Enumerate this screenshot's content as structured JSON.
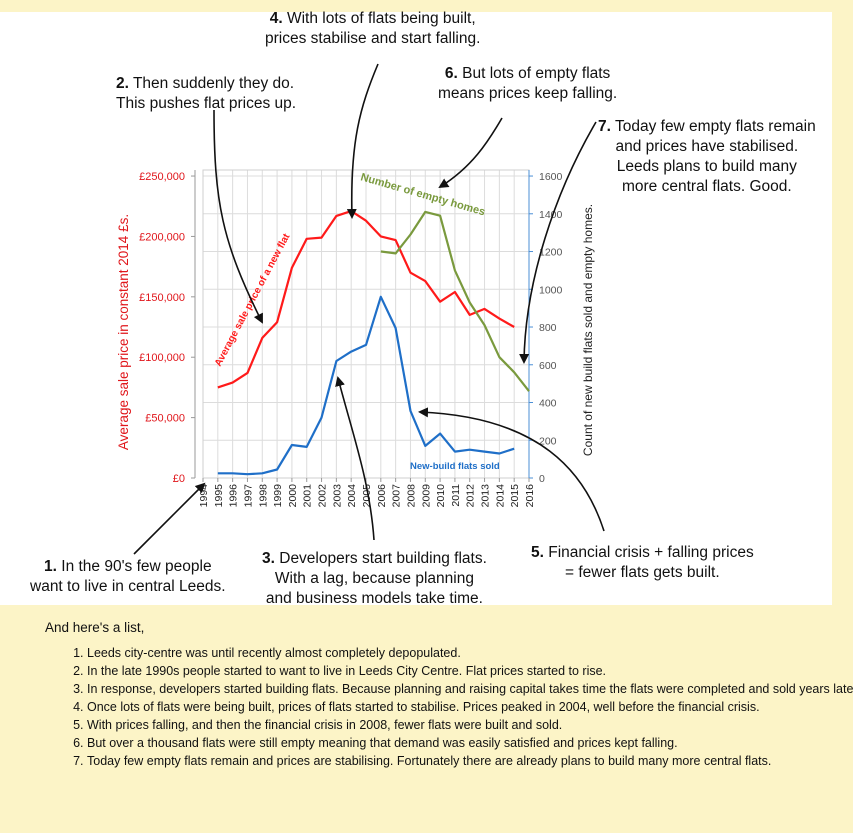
{
  "intro": "And here's a list,",
  "list_items": [
    "Leeds city-centre was until recently almost completely depopulated.",
    "In the late 1990s people started to want to live in Leeds City Centre. Flat prices started to rise.",
    "In response, developers started building flats. Because planning and raising capital takes time the flats were completed and sold years later.",
    "Once lots of flats were being built, prices of flats started to stabilise. Prices peaked in 2004, well before the financial crisis.",
    "With prices falling, and then the financial crisis in 2008, fewer flats were built and sold.",
    "But over a thousand flats were still empty meaning that demand was easily satisfied and prices kept falling.",
    "Today few empty flats remain and prices are stabilising. Fortunately there are already plans to build many more central flats."
  ],
  "annotations": {
    "a1": {
      "num": "1.",
      "line1": " In the 90's few people",
      "line2": "want to live in central Leeds."
    },
    "a2": {
      "num": "2.",
      "line1": " Then suddenly they do.",
      "line2": "This pushes flat prices up."
    },
    "a3": {
      "num": "3.",
      "line1": " Developers start building flats.",
      "line2": "With a lag, because planning",
      "line3": "and business models take time."
    },
    "a4": {
      "num": "4.",
      "line1": " With lots of flats being built,",
      "line2": "prices stabilise and start falling."
    },
    "a5": {
      "num": "5.",
      "line1": " Financial crisis + falling prices",
      "line2": "= fewer flats gets built."
    },
    "a6": {
      "num": "6.",
      "line1": " But lots of empty flats",
      "line2": "means prices keep falling."
    },
    "a7": {
      "num": "7.",
      "line1": " Today few empty flats remain",
      "line2": "and prices have stabilised.",
      "line3": "Leeds plans to build many",
      "line4": "more central flats. Good."
    }
  },
  "chart_data": {
    "type": "line",
    "x": [
      1994,
      1995,
      1996,
      1997,
      1998,
      1999,
      2000,
      2001,
      2002,
      2003,
      2004,
      2005,
      2006,
      2007,
      2008,
      2009,
      2010,
      2011,
      2012,
      2013,
      2014,
      2015,
      2016
    ],
    "xlim": [
      1994,
      2016
    ],
    "y_left_label": "Average sale price in constant 2014 £s.",
    "y_left_ticks": [
      0,
      50000,
      100000,
      150000,
      200000,
      250000
    ],
    "y_left_tick_labels": [
      "£0",
      "£50,000",
      "£100,000",
      "£150,000",
      "£200,000",
      "£250,000"
    ],
    "y_left_lim": [
      0,
      255000
    ],
    "y_right_label": "Count of new build flats sold and empty homes.",
    "y_right_ticks": [
      0,
      200,
      400,
      600,
      800,
      1000,
      1200,
      1400,
      1600
    ],
    "y_right_lim": [
      0,
      1632
    ],
    "grid": true,
    "series": [
      {
        "name": "Average sale price of a new flat",
        "axis": "left",
        "color": "#ff1a1a",
        "x": [
          1995,
          1996,
          1997,
          1998,
          1999,
          2000,
          2001,
          2002,
          2003,
          2004,
          2005,
          2006,
          2007,
          2008,
          2009,
          2010,
          2011,
          2012,
          2013,
          2014,
          2015
        ],
        "values": [
          75000,
          79000,
          87000,
          116000,
          129000,
          174000,
          198000,
          199000,
          217000,
          221000,
          213000,
          200000,
          197000,
          170000,
          163000,
          146000,
          154000,
          135000,
          140000,
          132000,
          125000
        ]
      },
      {
        "name": "New-build flats sold",
        "axis": "right",
        "color": "#1f6fc8",
        "x": [
          1995,
          1996,
          1997,
          1998,
          1999,
          2000,
          2001,
          2002,
          2003,
          2004,
          2005,
          2006,
          2007,
          2008,
          2009,
          2010,
          2011,
          2012,
          2013,
          2014,
          2015
        ],
        "values": [
          25,
          25,
          20,
          25,
          45,
          175,
          165,
          320,
          620,
          670,
          705,
          960,
          795,
          355,
          170,
          235,
          140,
          150,
          140,
          130,
          155
        ]
      },
      {
        "name": "Number of empty homes",
        "axis": "right",
        "color": "#7a9a3e",
        "x": [
          2006,
          2007,
          2008,
          2009,
          2010,
          2011,
          2012,
          2013,
          2014,
          2015,
          2016
        ],
        "values": [
          1200,
          1190,
          1290,
          1410,
          1390,
          1100,
          930,
          810,
          640,
          560,
          460
        ]
      }
    ]
  }
}
